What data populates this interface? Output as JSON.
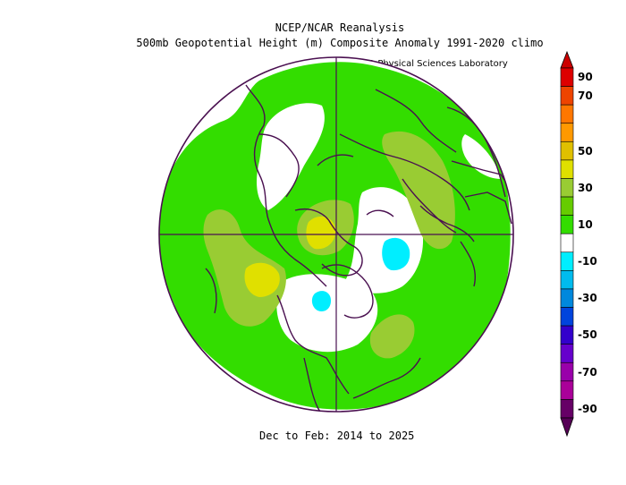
{
  "header": {
    "line1": "NCEP/NCAR Reanalysis",
    "line2": "500mb Geopotential Height (m) Composite Anomaly 1991-2020 climo",
    "credit": "NOAA Physical Sciences Laboratory"
  },
  "footer": {
    "period": "Dec to Feb: 2014 to 2025"
  },
  "colors": {
    "ocean_bg": "#ffffff",
    "coast": "#4a1050",
    "band_10_30": "#33dd00",
    "band_30_50": "#99cc33",
    "band_50_70": "#e0e000",
    "band_neg10": "#00eeff"
  },
  "colorbar": {
    "levels": [
      {
        "label": "90",
        "color": "#dd0000"
      },
      {
        "label": "70",
        "color": "#ee4400"
      },
      {
        "label": "",
        "color": "#ff7700"
      },
      {
        "label": "",
        "color": "#ff9900"
      },
      {
        "label": "50",
        "color": "#e0c000"
      },
      {
        "label": "",
        "color": "#e0e000"
      },
      {
        "label": "30",
        "color": "#99cc33"
      },
      {
        "label": "",
        "color": "#66cc00"
      },
      {
        "label": "10",
        "color": "#33dd00"
      },
      {
        "label": "",
        "color": "#ffffff"
      },
      {
        "label": "-10",
        "color": "#00eeff"
      },
      {
        "label": "",
        "color": "#00bbee"
      },
      {
        "label": "-30",
        "color": "#0088dd"
      },
      {
        "label": "",
        "color": "#0044dd"
      },
      {
        "label": "-50",
        "color": "#3300cc"
      },
      {
        "label": "",
        "color": "#6600cc"
      },
      {
        "label": "-70",
        "color": "#9900aa"
      },
      {
        "label": "",
        "color": "#aa0099"
      },
      {
        "label": "-90",
        "color": "#660066"
      }
    ],
    "top_arrow_color": "#cc0000",
    "bottom_arrow_color": "#550055",
    "labels": [
      "90",
      "70",
      "50",
      "30",
      "10",
      "-10",
      "-30",
      "-50",
      "-70",
      "-90"
    ]
  }
}
